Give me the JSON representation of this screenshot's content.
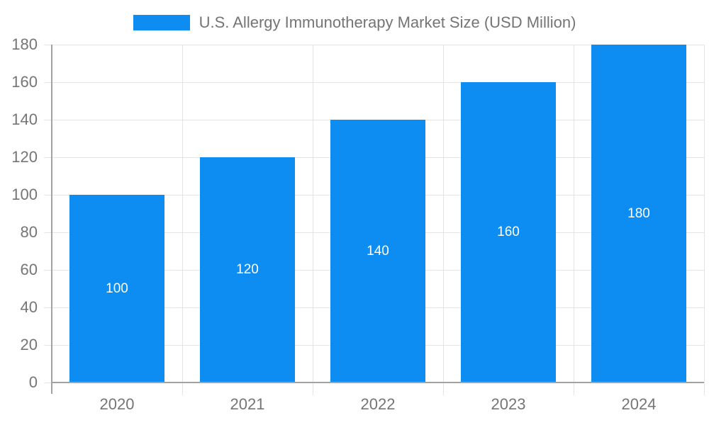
{
  "legend": {
    "label": "U.S. Allergy Immunotherapy Market Size (USD Million)"
  },
  "chart_data": {
    "type": "bar",
    "title": "U.S. Allergy Immunotherapy Market Size (USD Million)",
    "categories": [
      "2020",
      "2021",
      "2022",
      "2023",
      "2024"
    ],
    "series": [
      {
        "name": "U.S. Allergy Immunotherapy Market Size (USD Million)",
        "values": [
          100,
          120,
          140,
          160,
          180
        ]
      }
    ],
    "bar_value_labels": [
      "100",
      "120",
      "140",
      "160",
      "180"
    ],
    "xlabel": "",
    "ylabel": "",
    "ylim": [
      0,
      180
    ],
    "y_ticks": [
      0,
      20,
      40,
      60,
      80,
      100,
      120,
      140,
      160,
      180
    ],
    "grid": "on",
    "legend_position": "top-center",
    "colors": {
      "bar": "#0d8df2",
      "bar_label_text": "#ffffff",
      "axis_text": "#757575",
      "gridline": "#e4e4e4",
      "axis_line": "#a2a2a2"
    }
  }
}
